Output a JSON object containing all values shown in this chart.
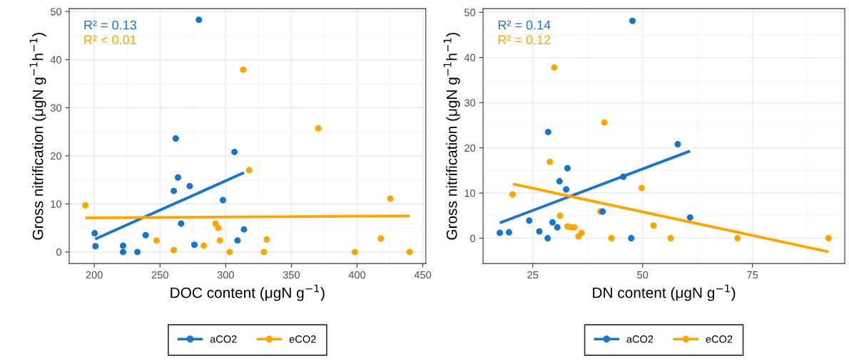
{
  "chart_data": [
    {
      "type": "scatter",
      "xlabel": "DOC content (μgN g$^{−1}$)",
      "ylabel": "Gross nitrification (μgN g$^{−1}$h$^{−1}$)",
      "annotations": [
        "R² = 0.13",
        "R² < 0.01"
      ],
      "xlim": [
        180.9,
        452.3
      ],
      "xticks": [
        200,
        250,
        300,
        350,
        400,
        450
      ],
      "ylim": [
        -2.4,
        50.6
      ],
      "yticks": [
        0,
        10,
        20,
        30,
        40,
        50
      ],
      "grid": true,
      "legend": "bottom",
      "marker": "circle",
      "series": [
        {
          "name": "aCO2",
          "color": "#1874cd",
          "x": [
            279.6,
            262,
            306.7,
            263.7,
            272.6,
            260.5,
            297.9,
            266.1,
            313.9,
            200.3,
            239.1,
            309,
            200.9,
            221.9,
            276.2,
            221.9,
            232.8
          ],
          "values": [
            48.3,
            23.6,
            20.8,
            15.5,
            13.7,
            12.7,
            10.8,
            5.9,
            4.7,
            3.9,
            3.5,
            2.4,
            1.2,
            1.3,
            1.5,
            0,
            0
          ]
        },
        {
          "name": "eCO2",
          "color": "#ffa500",
          "x": [
            313.3,
            370.5,
            317.9,
            193.2,
            425.3,
            292.3,
            294.4,
            247.4,
            295.6,
            331.2,
            418.1,
            283.3,
            260.5,
            303,
            329.1,
            398.4,
            440
          ],
          "values": [
            37.9,
            25.7,
            17.0,
            9.7,
            11.1,
            5.9,
            5.0,
            2.4,
            2.4,
            2.6,
            2.8,
            1.3,
            0.4,
            0,
            0,
            0,
            0
          ]
        },
        {
          "type": "line",
          "marker": "none",
          "color": "#1874cd",
          "x": [
            200.7,
            313.9
          ],
          "values": [
            2.7,
            16.5
          ]
        },
        {
          "type": "line",
          "marker": "none",
          "color": "#ffa500",
          "x": [
            193.2,
            440
          ],
          "values": [
            7.1,
            7.5
          ]
        }
      ]
    },
    {
      "type": "scatter",
      "xlabel": "DN content (μgN g$^{−1}$)",
      "ylabel": "Gross nitrification (μgN g$^{−1}$h$^{−1}$)",
      "annotations": [
        "R² = 0.14",
        "R² = 0.12"
      ],
      "xlim": [
        13.7,
        96.0
      ],
      "xticks": [
        25,
        50,
        75
      ],
      "ylim": [
        -5.6,
        50.8
      ],
      "yticks": [
        0,
        10,
        20,
        30,
        40,
        50
      ],
      "grid": true,
      "legend": "bottom",
      "marker": "circle",
      "series": [
        {
          "name": "aCO2",
          "color": "#1874cd",
          "x": [
            47.7,
            28.5,
            58.0,
            32.9,
            45.6,
            31.1,
            32.6,
            40.9,
            60.8,
            24.2,
            29.5,
            30.6,
            17.5,
            19.6,
            26.5,
            28.4,
            47.4
          ],
          "values": [
            48.1,
            23.5,
            20.8,
            15.5,
            13.6,
            12.6,
            10.8,
            5.9,
            4.6,
            3.9,
            3.5,
            2.4,
            1.2,
            1.3,
            1.5,
            0,
            0
          ]
        },
        {
          "name": "eCO2",
          "color": "#ffa500",
          "x": [
            29.9,
            41.3,
            28.9,
            20.4,
            49.8,
            40.4,
            31.2,
            32.9,
            33.7,
            34.5,
            52.5,
            36.1,
            35.4,
            42.9,
            56.4,
            71.6,
            92.3
          ],
          "values": [
            37.8,
            25.6,
            16.9,
            9.7,
            11.1,
            5.9,
            5.0,
            2.6,
            2.4,
            2.4,
            2.8,
            1.2,
            0.4,
            0,
            0,
            0,
            0
          ]
        },
        {
          "type": "line",
          "marker": "none",
          "color": "#1874cd",
          "x": [
            17.5,
            60.8
          ],
          "values": [
            3.4,
            19.3
          ]
        },
        {
          "type": "line",
          "marker": "none",
          "color": "#ffa500",
          "x": [
            20.5,
            92.3
          ],
          "values": [
            12.0,
            -3.0
          ]
        }
      ]
    }
  ]
}
